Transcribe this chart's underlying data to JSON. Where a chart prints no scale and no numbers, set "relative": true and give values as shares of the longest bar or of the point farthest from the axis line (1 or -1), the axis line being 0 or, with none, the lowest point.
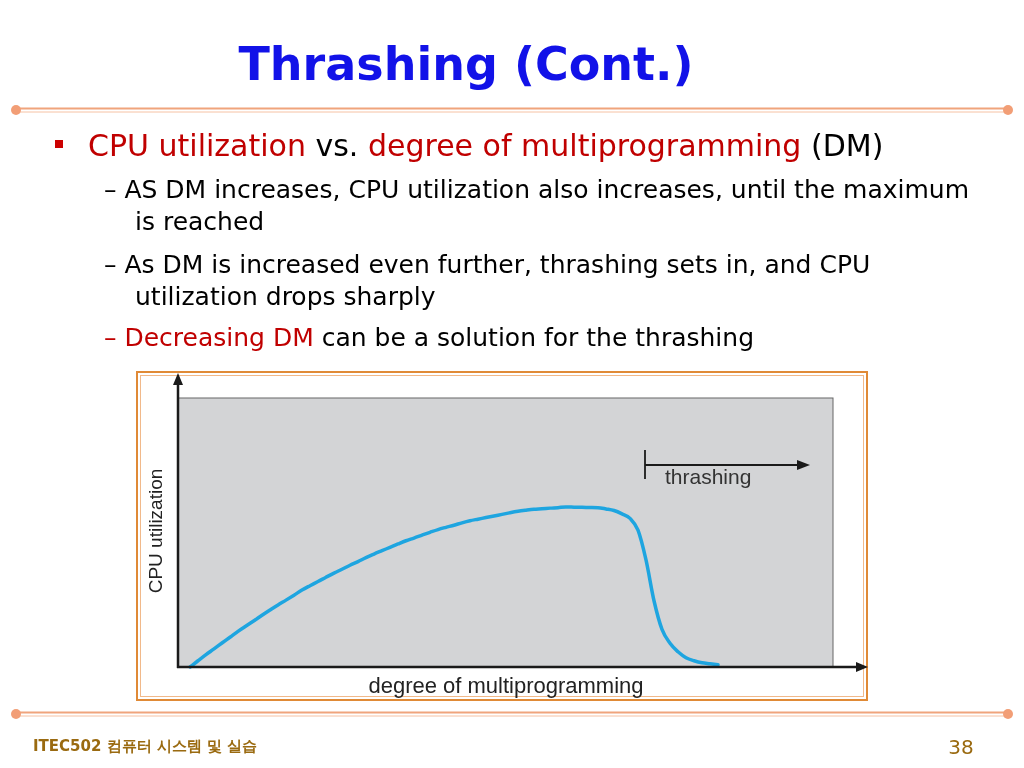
{
  "chart_data": {
    "type": "line",
    "relative": true,
    "title": "Thrashing (Cont.)",
    "xlabel": "degree of multiprogramming",
    "ylabel": "CPU utilization",
    "line_style": "solid",
    "categories": [
      null,
      null,
      null,
      null,
      null,
      null,
      null,
      null,
      null,
      null,
      null,
      null,
      null,
      null,
      null,
      null,
      null,
      null,
      null,
      null,
      null,
      null,
      null,
      null,
      null,
      null,
      null,
      null,
      null,
      null,
      null,
      null,
      null,
      null,
      null,
      null,
      null,
      null,
      null,
      null,
      null,
      null,
      null,
      null,
      null,
      null,
      null,
      null,
      null,
      null,
      null,
      null,
      null,
      null,
      null,
      null,
      null,
      null,
      null,
      null,
      null,
      null,
      null,
      null,
      null,
      null,
      null
    ],
    "series": [
      {
        "color": "#1ea5e0",
        "values": [
          0,
          0.039,
          0.077,
          0.113,
          0.15,
          0.186,
          0.223,
          0.256,
          0.289,
          0.323,
          0.356,
          0.388,
          0.418,
          0.449,
          0.481,
          0.508,
          0.534,
          0.561,
          0.587,
          0.611,
          0.636,
          0.659,
          0.684,
          0.706,
          0.727,
          0.748,
          0.769,
          0.789,
          0.806,
          0.824,
          0.842,
          0.859,
          0.873,
          0.886,
          0.901,
          0.914,
          0.924,
          0.934,
          0.944,
          0.954,
          0.964,
          0.973,
          0.98,
          0.986,
          0.989,
          0.993,
          0.996,
          1,
          0.999,
          0.998,
          0.997,
          0.996,
          0.988,
          0.978,
          0.957,
          0.929,
          0.855,
          0.669,
          0.414,
          0.235,
          0.148,
          0.095,
          0.058,
          0.039,
          0.026,
          0.02,
          0.014
        ]
      }
    ],
    "annotations": [
      "thrashing",
      "CPU utilization",
      "vs.",
      "degree of multiprogramming",
      "(DM)",
      "– AS DM increases, CPU utilization also increases, until the maximum is reached",
      "– As DM is increased even further, thrashing sets in, and CPU utilization drops sharply",
      "– Decreasing DM",
      "can be a solution for the thrashing",
      "ITEC502 컴퓨터 시스템 및 실습",
      "38"
    ]
  }
}
